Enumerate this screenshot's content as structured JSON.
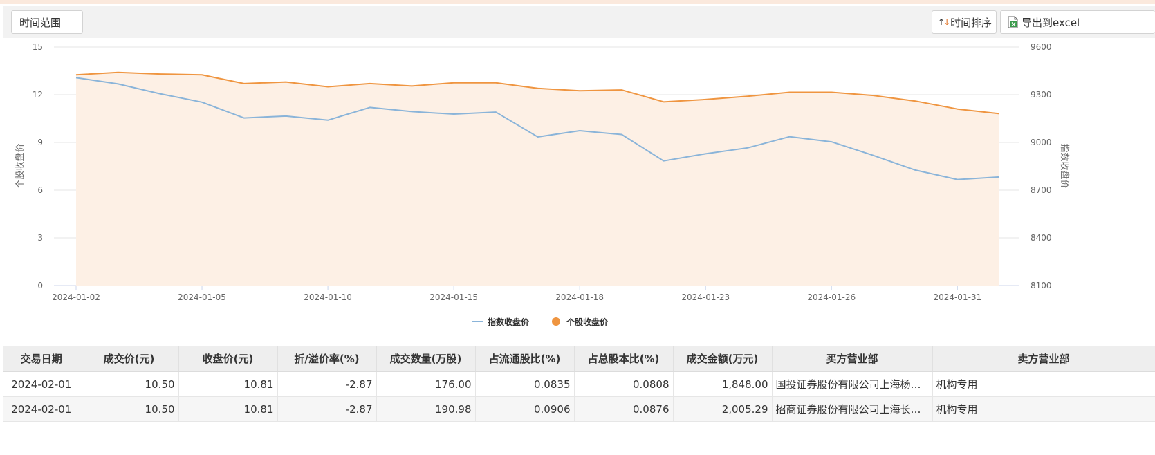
{
  "toolbar": {
    "range_label": "时间范围",
    "sort_label": "时间排序",
    "export_label": "导出到excel"
  },
  "chart_data": {
    "type": "line",
    "x": [
      "2024-01-02",
      "2024-01-03",
      "2024-01-04",
      "2024-01-05",
      "2024-01-08",
      "2024-01-09",
      "2024-01-10",
      "2024-01-11",
      "2024-01-12",
      "2024-01-15",
      "2024-01-16",
      "2024-01-17",
      "2024-01-18",
      "2024-01-19",
      "2024-01-22",
      "2024-01-23",
      "2024-01-24",
      "2024-01-25",
      "2024-01-26",
      "2024-01-29",
      "2024-01-30",
      "2024-01-31",
      "2024-02-01"
    ],
    "x_tick_labels": [
      "2024-01-02",
      "2024-01-05",
      "2024-01-10",
      "2024-01-15",
      "2024-01-18",
      "2024-01-23",
      "2024-01-26",
      "2024-01-31"
    ],
    "series": [
      {
        "name": "指数收盘价",
        "axis": "right",
        "color": "#8ab4d9",
        "values": [
          9407,
          9368,
          9306,
          9253,
          9154,
          9166,
          9140,
          9220,
          9194,
          9178,
          9191,
          9035,
          9074,
          9050,
          8884,
          8929,
          8966,
          9036,
          9004,
          8918,
          8826,
          8767,
          8783
        ]
      },
      {
        "name": "个股收盘价",
        "axis": "left",
        "color": "#ef9540",
        "fill": "#fdf0e5",
        "values": [
          13.25,
          13.4,
          13.3,
          13.25,
          12.7,
          12.8,
          12.5,
          12.7,
          12.55,
          12.75,
          12.75,
          12.4,
          12.25,
          12.3,
          11.55,
          11.7,
          11.9,
          12.15,
          12.15,
          11.95,
          11.6,
          11.1,
          10.81
        ]
      }
    ],
    "y_left": {
      "label": "个股收盘价",
      "ylim": [
        0,
        15
      ],
      "ticks": [
        "0",
        "3",
        "6",
        "9",
        "12",
        "15"
      ]
    },
    "y_right": {
      "label": "指数收盘价",
      "ylim": [
        8100,
        9600
      ],
      "ticks": [
        "8100",
        "8400",
        "8700",
        "9000",
        "9300",
        "9600"
      ]
    },
    "grid": true,
    "legend": "bottom-center"
  },
  "table": {
    "headers": [
      "交易日期",
      "成交价(元)",
      "收盘价(元)",
      "折/溢价率(%)",
      "成交数量(万股)",
      "占流通股比(%)",
      "占总股本比(%)",
      "成交金额(万元)",
      "买方营业部",
      "卖方营业部"
    ],
    "rows": [
      [
        "2024-02-01",
        "10.50",
        "10.81",
        "-2.87",
        "176.00",
        "0.0835",
        "0.0808",
        "1,848.00",
        "国投证券股份有限公司上海杨…",
        "机构专用"
      ],
      [
        "2024-02-01",
        "10.50",
        "10.81",
        "-2.87",
        "190.98",
        "0.0906",
        "0.0876",
        "2,005.29",
        "招商证券股份有限公司上海长…",
        "机构专用"
      ]
    ]
  }
}
